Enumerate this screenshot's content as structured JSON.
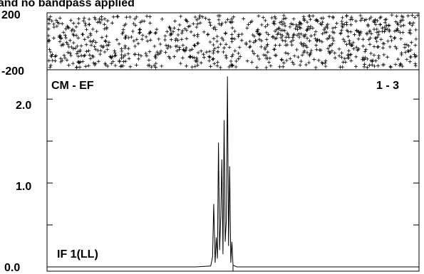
{
  "chart_data": [
    {
      "type": "scatter",
      "title": "I and no bandpass applied",
      "ylim": [
        -200,
        200
      ],
      "yticks": [
        "200",
        "-200"
      ],
      "marker": "+",
      "grid": false,
      "values_description": "phase scatter",
      "x_range": [
        0,
        1
      ],
      "seed": 7
    },
    {
      "type": "line",
      "baseline_label": "CM - EF",
      "channel_label": "1 - 3",
      "if_label": "IF 1(LL)",
      "ylim": [
        0.0,
        2.35
      ],
      "yticks": [
        "2.0",
        "1.0",
        "0.0"
      ],
      "ytick_values": [
        2.0,
        1.0,
        0.0
      ],
      "x": [
        0.0,
        0.4,
        0.44,
        0.445,
        0.448,
        0.452,
        0.455,
        0.458,
        0.461,
        0.464,
        0.467,
        0.47,
        0.473,
        0.476,
        0.479,
        0.482,
        0.485,
        0.488,
        0.491,
        0.494,
        0.497,
        0.5,
        0.51,
        0.55,
        1.0
      ],
      "y": [
        0.0,
        0.0,
        0.01,
        0.12,
        0.75,
        0.05,
        0.35,
        0.1,
        1.48,
        0.2,
        0.6,
        1.28,
        0.15,
        1.75,
        0.3,
        0.55,
        2.27,
        0.25,
        1.2,
        0.05,
        0.3,
        0.02,
        0.0,
        0.0,
        0.0
      ],
      "grid": false
    }
  ]
}
